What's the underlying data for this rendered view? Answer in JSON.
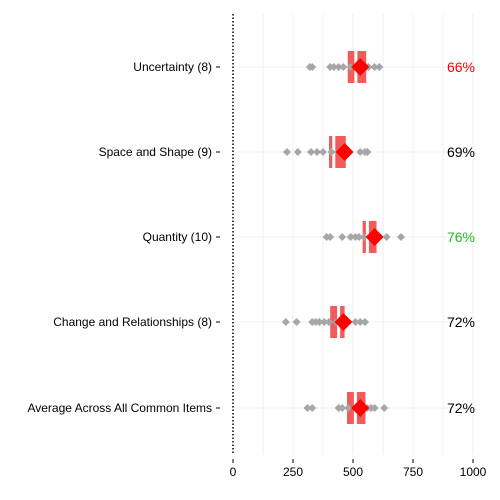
{
  "colors": {
    "box": "#f25b5b",
    "median_marker": "#ff0000",
    "points": "#a6a6a6",
    "grid": "#ebebeb",
    "pct_red": "#ff0000",
    "pct_green": "#22bb22",
    "pct_default": "#000000"
  },
  "chart_data": {
    "type": "boxplot",
    "title": "",
    "xlabel": "",
    "ylabel": "",
    "xlim": [
      0,
      1000
    ],
    "x_ticks": [
      0,
      250,
      500,
      750,
      1000
    ],
    "x_tick_labels": [
      "0",
      "250",
      "500",
      "750",
      "1000"
    ],
    "grid": true,
    "reference_line": {
      "x": 0,
      "style": "dotted"
    },
    "categories": [
      {
        "label": "Uncertainty (8)",
        "q1": 478,
        "median": 512,
        "q3": 555,
        "marker": 530,
        "points": [
          320,
          330,
          405,
          420,
          440,
          460,
          490,
          530,
          555,
          565,
          590,
          610
        ],
        "pct": "66%",
        "pct_color": "red"
      },
      {
        "label": "Space and Shape (9)",
        "q1": 400,
        "median": 420,
        "q3": 470,
        "marker": 465,
        "points": [
          225,
          270,
          325,
          350,
          375,
          410,
          450,
          470,
          530,
          550,
          560
        ],
        "pct": "69%",
        "pct_color": "default"
      },
      {
        "label": "Quantity (10)",
        "q1": 540,
        "median": 560,
        "q3": 598,
        "marker": 590,
        "points": [
          390,
          405,
          455,
          490,
          510,
          525,
          545,
          575,
          605,
          640,
          700
        ],
        "pct": "76%",
        "pct_color": "green"
      },
      {
        "label": "Change and Relationships (8)",
        "q1": 405,
        "median": 440,
        "q3": 465,
        "marker": 460,
        "points": [
          220,
          265,
          330,
          345,
          360,
          380,
          400,
          430,
          475,
          510,
          530,
          550
        ],
        "pct": "72%",
        "pct_color": "default"
      },
      {
        "label": "Average Across All Common Items",
        "q1": 475,
        "median": 510,
        "q3": 552,
        "marker": 530,
        "points": [
          310,
          330,
          440,
          455,
          480,
          510,
          540,
          560,
          575,
          590,
          630
        ],
        "pct": "72%",
        "pct_color": "default"
      }
    ]
  }
}
